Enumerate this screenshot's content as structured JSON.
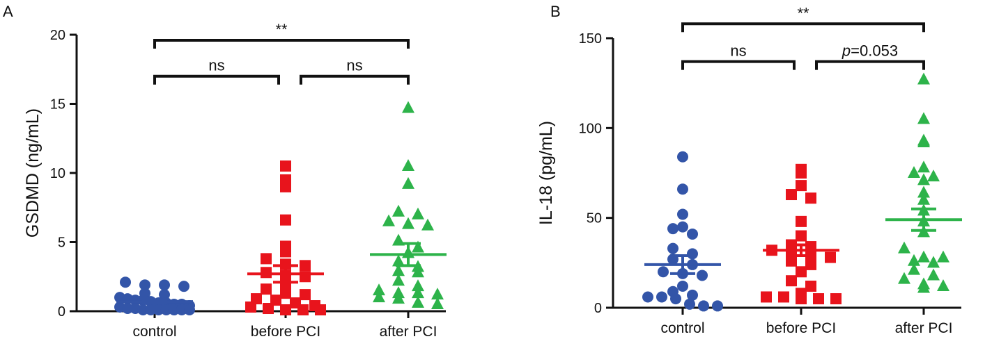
{
  "chart_data": [
    {
      "panel": "A",
      "type": "scatter",
      "ylabel": "GSDMD (ng/mL)",
      "ylim": [
        0,
        20
      ],
      "yticks": [
        0,
        5,
        10,
        15,
        20
      ],
      "categories": [
        "control",
        "before PCI",
        "after PCI"
      ],
      "colors": [
        "#3355a8",
        "#e8141c",
        "#2db34a"
      ],
      "markers": [
        "circle",
        "square",
        "triangle"
      ],
      "groups": [
        {
          "name": "control",
          "mean": 0.7,
          "sem": 0.1,
          "points": [
            2.1,
            1.9,
            1.9,
            1.8,
            1.3,
            1.2,
            1.0,
            0.9,
            0.8,
            0.8,
            0.7,
            0.6,
            0.6,
            0.5,
            0.5,
            0.4,
            0.3,
            0.2,
            0.2,
            0.1,
            0.1,
            0.1,
            0.1,
            0.1,
            0.1,
            0.1
          ]
        },
        {
          "name": "before PCI",
          "mean": 2.7,
          "sem": 0.6,
          "points": [
            10.5,
            9.5,
            9.0,
            6.6,
            4.7,
            4.3,
            3.8,
            3.4,
            3.3,
            2.8,
            2.6,
            2.5,
            1.9,
            1.6,
            1.3,
            1.2,
            0.9,
            0.8,
            0.6,
            0.4,
            0.3,
            0.2,
            0.1,
            0.1,
            0.1
          ]
        },
        {
          "name": "after PCI",
          "mean": 4.1,
          "sem": 0.8,
          "points": [
            14.7,
            10.5,
            9.2,
            7.2,
            7.0,
            6.5,
            6.3,
            6.2,
            5.1,
            4.6,
            4.2,
            3.6,
            3.2,
            2.9,
            2.8,
            2.2,
            1.8,
            1.5,
            1.3,
            1.3,
            1.2,
            1.0,
            0.9,
            0.6,
            0.5
          ]
        }
      ],
      "significance": [
        {
          "from": "control",
          "to": "after PCI",
          "label": "**",
          "y": 19.6
        },
        {
          "from": "control",
          "to": "before PCI",
          "label": "ns",
          "y": 17.0
        },
        {
          "from": "before PCI",
          "to": "after PCI",
          "label": "ns",
          "y": 17.0
        }
      ]
    },
    {
      "panel": "B",
      "type": "scatter",
      "ylabel": "IL-18 (pg/mL)",
      "ylim": [
        0,
        150
      ],
      "yticks": [
        0,
        50,
        100,
        150
      ],
      "categories": [
        "control",
        "before PCI",
        "after PCI"
      ],
      "colors": [
        "#3355a8",
        "#e8141c",
        "#2db34a"
      ],
      "markers": [
        "circle",
        "square",
        "triangle"
      ],
      "groups": [
        {
          "name": "control",
          "mean": 24,
          "sem": 5,
          "points": [
            84,
            66,
            52,
            45,
            44,
            41,
            33,
            30,
            27,
            24,
            20,
            19,
            18,
            12,
            9,
            7,
            6,
            6,
            5,
            2,
            1,
            1
          ]
        },
        {
          "name": "before PCI",
          "mean": 32,
          "sem": 3,
          "points": [
            77,
            75,
            68,
            63,
            61,
            48,
            40,
            35,
            34,
            32,
            30,
            29,
            28,
            26,
            24,
            20,
            15,
            12,
            8,
            6,
            6,
            5,
            5,
            5
          ]
        },
        {
          "name": "after PCI",
          "mean": 49,
          "sem": 6,
          "points": [
            127,
            105,
            93,
            92,
            78,
            75,
            73,
            71,
            64,
            60,
            54,
            48,
            42,
            33,
            28,
            28,
            26,
            25,
            21,
            18,
            16,
            13,
            12,
            11
          ]
        }
      ],
      "significance": [
        {
          "from": "control",
          "to": "after PCI",
          "label": "**",
          "y": 158
        },
        {
          "from": "control",
          "to": "before PCI",
          "label": "ns",
          "y": 137
        },
        {
          "from": "before PCI",
          "to": "after PCI",
          "label_prefix": "p",
          "label": "=0.053",
          "y": 137
        }
      ]
    }
  ]
}
